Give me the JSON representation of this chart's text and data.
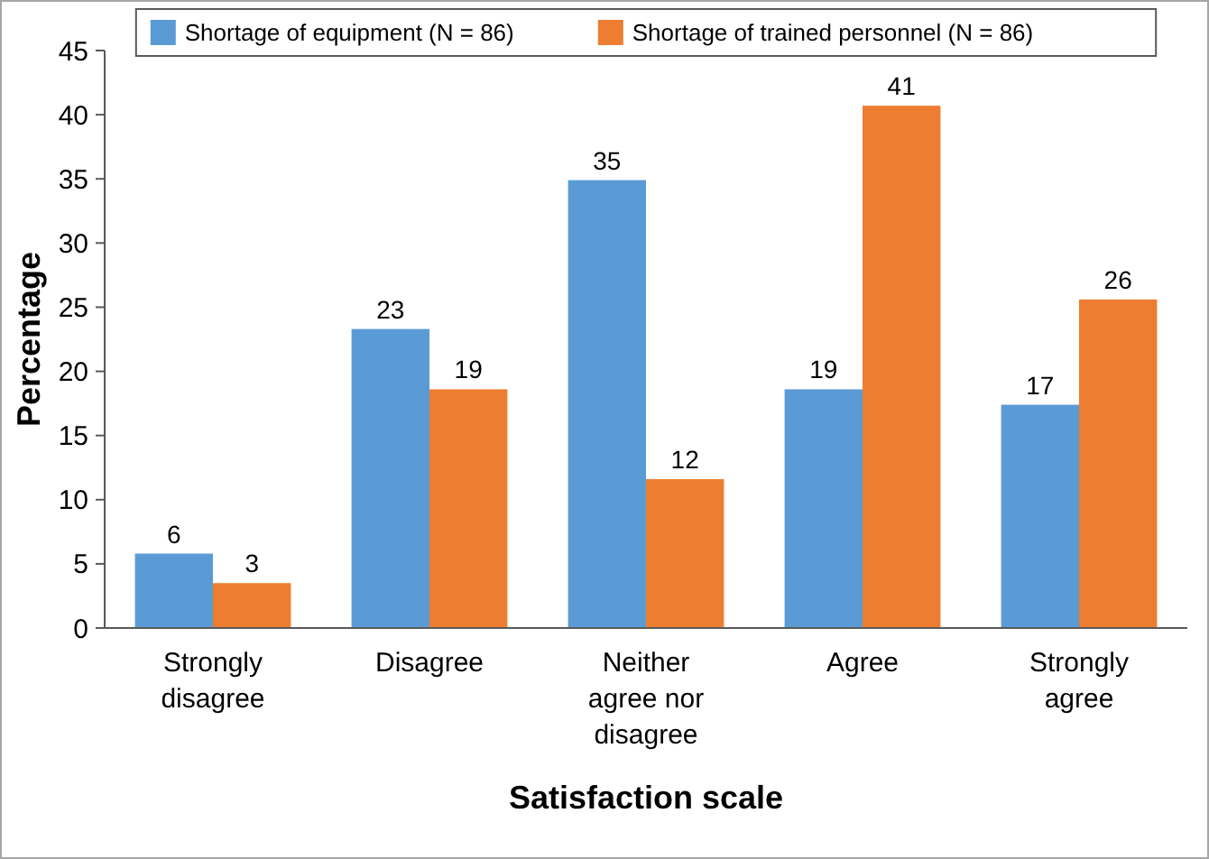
{
  "chart_data": {
    "type": "bar",
    "xlabel": "Satisfaction scale",
    "ylabel": "Percentage",
    "categories": [
      "Strongly disagree",
      "Disagree",
      "Neither agree nor disagree",
      "Agree",
      "Strongly agree"
    ],
    "series": [
      {
        "name": "Shortage of equipment (N = 86)",
        "color": "#5b9bd5",
        "values": [
          5.8,
          23.3,
          34.9,
          18.6,
          17.4
        ],
        "value_labels": [
          "6",
          "23",
          "35",
          "19",
          "17"
        ]
      },
      {
        "name": "Shortage of trained personnel (N = 86)",
        "color": "#ed7d31",
        "values": [
          3.5,
          18.6,
          11.6,
          40.7,
          25.6
        ],
        "value_labels": [
          "3",
          "19",
          "12",
          "41",
          "26"
        ]
      }
    ],
    "ylim": [
      0,
      45
    ],
    "yticks": [
      0,
      5,
      10,
      15,
      20,
      25,
      30,
      35,
      40,
      45
    ],
    "legend": "top",
    "grid": false
  }
}
